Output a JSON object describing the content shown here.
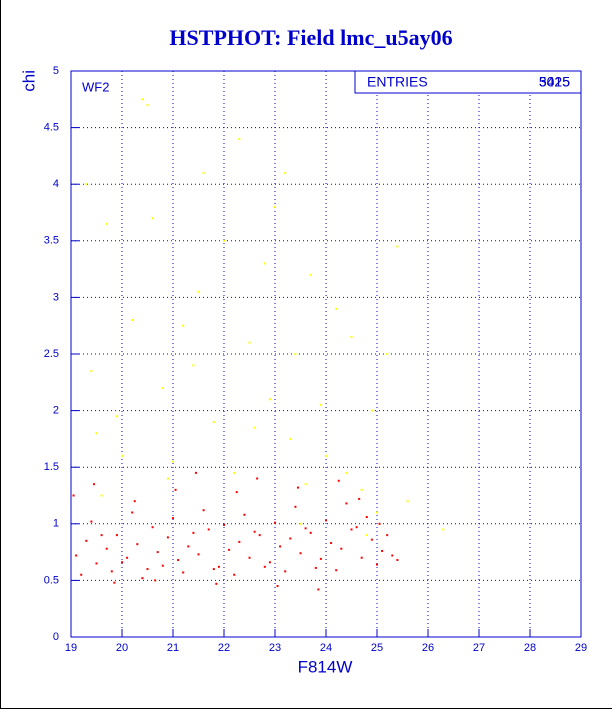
{
  "chart_data": {
    "type": "scatter",
    "title": "HSTPHOT: Field lmc_u5ay06",
    "xlabel": "F814W",
    "ylabel": "chi",
    "annotation": "WF2",
    "stats": {
      "label": "ENTRIES",
      "values": [
        3425,
        5015
      ]
    },
    "xlim": [
      19,
      29
    ],
    "ylim": [
      0,
      5
    ],
    "xticks": [
      19,
      20,
      21,
      22,
      23,
      24,
      25,
      26,
      27,
      28,
      29
    ],
    "yticks": [
      0,
      0.5,
      1,
      1.5,
      2,
      2.5,
      3,
      3.5,
      4,
      4.5,
      5
    ],
    "grid": true,
    "series": [
      {
        "color": "#ff0000",
        "x": [
          19.1,
          19.3,
          19.5,
          19.7,
          19.9,
          20.1,
          20.3,
          20.5,
          20.7,
          20.9,
          21.1,
          21.3,
          21.5,
          21.7,
          21.9,
          22.1,
          22.3,
          22.5,
          22.7,
          22.9,
          23.1,
          23.3,
          23.5,
          23.7,
          23.9,
          24.1,
          24.3,
          24.5,
          24.7,
          24.9,
          25.1,
          25.3,
          19.2,
          19.4,
          19.6,
          19.8,
          20.0,
          20.2,
          20.4,
          20.6,
          20.8,
          21.0,
          21.2,
          21.4,
          21.6,
          21.8,
          22.0,
          22.2,
          22.4,
          22.6,
          22.8,
          23.0,
          23.2,
          23.4,
          23.6,
          23.8,
          24.0,
          24.2,
          24.4,
          24.6,
          24.8,
          25.0,
          25.2,
          25.4,
          19.05,
          19.45,
          19.85,
          20.25,
          20.65,
          21.05,
          21.45,
          21.85,
          22.25,
          22.65,
          23.05,
          23.45,
          23.85,
          24.25,
          24.65,
          25.05
        ],
        "y": [
          0.72,
          0.85,
          0.65,
          0.78,
          0.9,
          0.7,
          0.82,
          0.6,
          0.75,
          0.88,
          0.68,
          0.8,
          0.73,
          0.95,
          0.62,
          0.77,
          0.84,
          0.7,
          0.9,
          0.66,
          0.8,
          0.87,
          0.74,
          0.92,
          0.69,
          0.83,
          0.78,
          0.95,
          0.7,
          0.86,
          0.76,
          0.72,
          0.55,
          1.02,
          0.9,
          0.58,
          0.66,
          1.1,
          0.52,
          0.97,
          0.63,
          1.05,
          0.57,
          0.92,
          1.12,
          0.6,
          0.99,
          0.55,
          1.08,
          0.93,
          0.62,
          1.01,
          0.58,
          1.15,
          0.96,
          0.61,
          1.03,
          0.59,
          1.18,
          0.97,
          1.06,
          0.64,
          0.9,
          0.68,
          1.25,
          1.35,
          0.48,
          1.2,
          0.5,
          1.3,
          1.45,
          0.47,
          1.28,
          1.4,
          0.45,
          1.32,
          0.42,
          1.38,
          1.22,
          1.0
        ]
      },
      {
        "color": "#ffff00",
        "x": [
          19.3,
          19.4,
          19.5,
          19.7,
          19.9,
          20.0,
          20.2,
          20.4,
          20.5,
          20.6,
          20.8,
          21.0,
          21.2,
          21.4,
          21.5,
          21.6,
          21.8,
          22.0,
          22.2,
          22.3,
          22.5,
          22.6,
          22.8,
          22.9,
          23.0,
          23.2,
          23.3,
          23.4,
          23.6,
          23.7,
          23.9,
          24.0,
          24.2,
          24.4,
          24.5,
          24.7,
          24.9,
          25.0,
          25.2,
          25.4,
          25.6,
          26.3,
          19.6,
          20.9,
          23.5,
          24.8
        ],
        "y": [
          4.0,
          2.35,
          1.8,
          3.65,
          1.95,
          1.6,
          2.8,
          4.75,
          4.7,
          3.7,
          2.2,
          1.55,
          2.75,
          2.4,
          3.05,
          4.1,
          1.9,
          3.5,
          1.45,
          4.4,
          2.6,
          1.85,
          3.3,
          2.1,
          3.8,
          4.1,
          1.75,
          2.5,
          1.35,
          3.2,
          2.05,
          1.6,
          2.9,
          1.45,
          2.65,
          1.3,
          2.0,
          1.1,
          2.5,
          3.45,
          1.2,
          0.95,
          1.25,
          1.4,
          1.0,
          0.9
        ]
      }
    ]
  }
}
